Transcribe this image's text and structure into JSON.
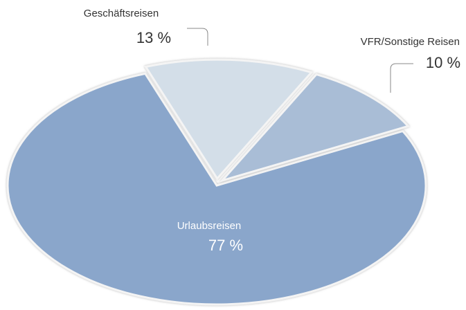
{
  "chart_data": {
    "type": "pie",
    "categories": [
      "Urlaubsreisen",
      "Geschäftsreisen",
      "VFR/Sonstige Reisen"
    ],
    "values": [
      77,
      13,
      10
    ],
    "value_labels": [
      "77 %",
      "13 %",
      "10 %"
    ],
    "colors": [
      "#8aa6cb",
      "#d3dee8",
      "#a9bdd6"
    ]
  }
}
